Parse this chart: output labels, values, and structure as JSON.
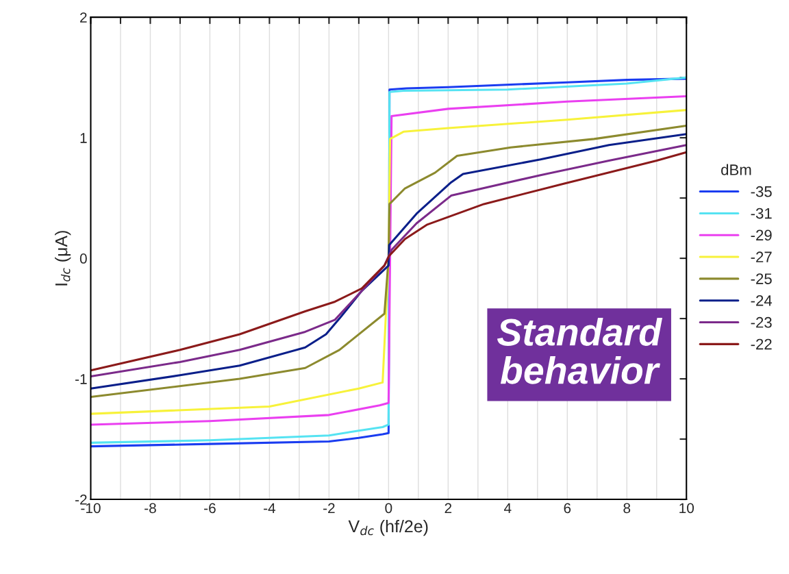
{
  "chart_data": {
    "type": "line",
    "xlabel": "V$_{dc}$ (hf/2e)",
    "ylabel": "I$_{dc}$ (μA)",
    "legend_title": "dBm",
    "legend": "right",
    "grid": "x",
    "line_style": "solid",
    "marker": "none",
    "annotations": [
      "Standard\nbehavior"
    ],
    "xlim": [
      -10,
      10
    ],
    "ylim": [
      -2,
      2
    ],
    "xticks": [
      -10,
      {
        "value": -9,
        "label": null
      },
      -8,
      {
        "value": -7,
        "label": null
      },
      -6,
      {
        "value": -5,
        "label": null
      },
      -4,
      {
        "value": -3,
        "label": null
      },
      -2,
      {
        "value": -1,
        "label": null
      },
      0,
      {
        "value": 1,
        "label": null
      },
      2,
      {
        "value": 3,
        "label": null
      },
      4,
      {
        "value": 5,
        "label": null
      },
      6,
      {
        "value": 7,
        "label": null
      },
      8,
      {
        "value": 9,
        "label": null
      },
      10
    ],
    "yticks": [
      -2,
      {
        "value": -1.5,
        "label": null
      },
      -1,
      {
        "value": -0.5,
        "label": null
      },
      0,
      {
        "value": 0.5,
        "label": null
      },
      1,
      {
        "value": 1.5,
        "label": null
      },
      2
    ],
    "series": [
      {
        "name": "-35",
        "color": "#1a3cf0",
        "x": [
          -10,
          -6,
          -2,
          -1,
          -0.2,
          0.0,
          0.02,
          0.03,
          0.6,
          2,
          6,
          8,
          10
        ],
        "values": [
          -1.56,
          -1.54,
          -1.52,
          -1.49,
          -1.46,
          -1.45,
          0.0,
          1.4,
          1.41,
          1.42,
          1.46,
          1.48,
          1.49
        ]
      },
      {
        "name": "-31",
        "color": "#55e3f2",
        "x": [
          -10,
          -6,
          -2,
          -1,
          -0.2,
          0.0,
          0.02,
          0.03,
          0.5,
          4,
          8,
          10
        ],
        "values": [
          -1.53,
          -1.51,
          -1.47,
          -1.43,
          -1.4,
          -1.38,
          0.0,
          1.38,
          1.39,
          1.4,
          1.45,
          1.5
        ]
      },
      {
        "name": "-29",
        "color": "#ea3ff0",
        "x": [
          -10,
          -6,
          -2,
          -0.3,
          0.0,
          0.05,
          0.1,
          2,
          6,
          10
        ],
        "values": [
          -1.38,
          -1.35,
          -1.3,
          -1.22,
          -1.2,
          0.0,
          1.18,
          1.24,
          1.3,
          1.345
        ]
      },
      {
        "name": "-27",
        "color": "#f7f23a",
        "x": [
          -10,
          -4,
          -1,
          -0.2,
          0.0,
          0.05,
          0.5,
          2,
          6,
          10
        ],
        "values": [
          -1.29,
          -1.23,
          -1.08,
          -1.03,
          0.0,
          0.99,
          1.05,
          1.08,
          1.15,
          1.23
        ]
      },
      {
        "name": "-25",
        "color": "#8c8a2e",
        "x": [
          -10,
          -5,
          -2.8,
          -1.65,
          -0.14,
          0.0,
          0.03,
          0.55,
          1.56,
          2.3,
          4.1,
          6.9,
          10
        ],
        "values": [
          -1.15,
          -1.0,
          -0.91,
          -0.76,
          -0.46,
          0.0,
          0.45,
          0.58,
          0.71,
          0.85,
          0.92,
          0.99,
          1.1
        ]
      },
      {
        "name": "-24",
        "color": "#0a1f8a",
        "x": [
          -10,
          -7,
          -5,
          -2.8,
          -2.1,
          -1.65,
          -0.9,
          0.0,
          0.02,
          0.94,
          2.1,
          2.5,
          5.1,
          7.4,
          10
        ],
        "values": [
          -1.08,
          -0.97,
          -0.89,
          -0.74,
          -0.63,
          -0.5,
          -0.27,
          -0.06,
          0.11,
          0.37,
          0.63,
          0.7,
          0.82,
          0.94,
          1.03
        ]
      },
      {
        "name": "-23",
        "color": "#7b2a8a",
        "x": [
          -10,
          -7,
          -5,
          -2.8,
          -1.8,
          -0.9,
          -0.14,
          0.1,
          0.94,
          2.1,
          5.1,
          7.4,
          10
        ],
        "values": [
          -0.98,
          -0.86,
          -0.76,
          -0.61,
          -0.51,
          -0.27,
          -0.06,
          0.07,
          0.29,
          0.52,
          0.69,
          0.81,
          0.94
        ]
      },
      {
        "name": "-22",
        "color": "#8b1a1a",
        "x": [
          -10,
          -7,
          -5,
          -2.8,
          -1.8,
          -0.9,
          -0.14,
          0.02,
          0.55,
          1.3,
          3.2,
          5.9,
          9.0,
          10
        ],
        "values": [
          -0.93,
          -0.76,
          -0.63,
          -0.44,
          -0.36,
          -0.25,
          -0.06,
          0.02,
          0.16,
          0.28,
          0.45,
          0.62,
          0.81,
          0.88
        ]
      }
    ]
  }
}
